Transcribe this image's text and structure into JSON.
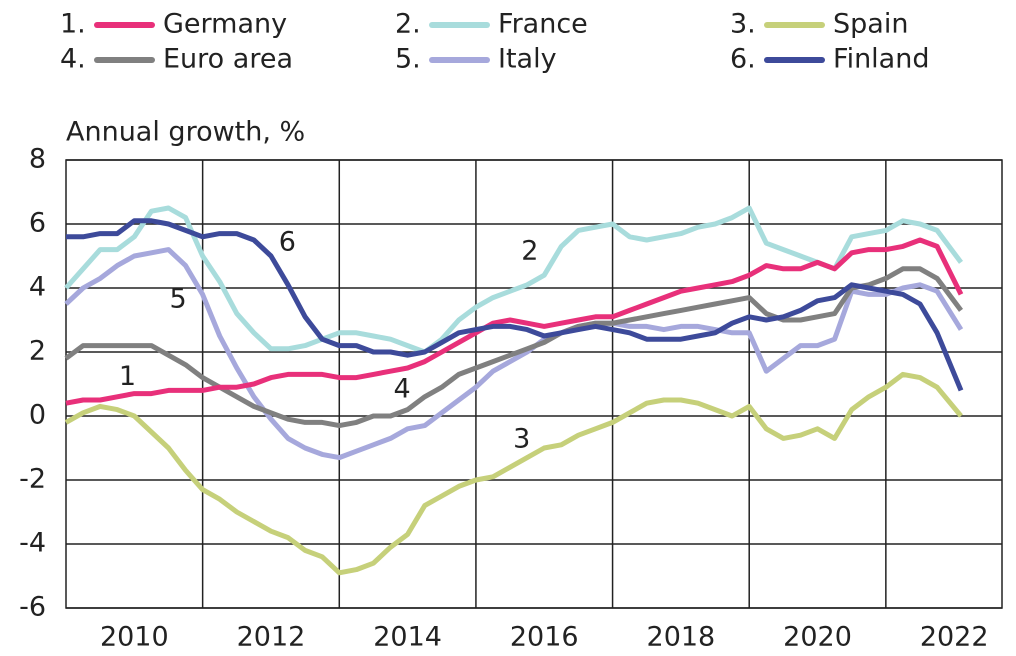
{
  "chart_data": {
    "type": "line",
    "y_label": "Annual growth, %",
    "xlim": [
      2009,
      2022.7
    ],
    "ylim": [
      -6,
      8
    ],
    "xticks": [
      2010,
      2012,
      2014,
      2016,
      2018,
      2020,
      2022
    ],
    "xgrid": [
      2011,
      2013,
      2015,
      2017,
      2019,
      2021
    ],
    "yticks": [
      -6,
      -4,
      -2,
      0,
      2,
      4,
      6,
      8
    ],
    "grid": true,
    "x": [
      2009,
      2009.25,
      2009.5,
      2009.75,
      2010,
      2010.25,
      2010.5,
      2010.75,
      2011,
      2011.25,
      2011.5,
      2011.75,
      2012,
      2012.25,
      2012.5,
      2012.75,
      2013,
      2013.25,
      2013.5,
      2013.75,
      2014,
      2014.25,
      2014.5,
      2014.75,
      2015,
      2015.25,
      2015.5,
      2015.75,
      2016,
      2016.25,
      2016.5,
      2016.75,
      2017,
      2017.25,
      2017.5,
      2017.75,
      2018,
      2018.25,
      2018.5,
      2018.75,
      2019,
      2019.25,
      2019.5,
      2019.75,
      2020,
      2020.25,
      2020.5,
      2020.75,
      2021,
      2021.25,
      2021.5,
      2021.75,
      2022.1
    ],
    "series": [
      {
        "key": "1.",
        "name": "Germany",
        "color": "#e8307a",
        "values": [
          0.4,
          0.5,
          0.5,
          0.6,
          0.7,
          0.7,
          0.8,
          0.8,
          0.8,
          0.9,
          0.9,
          1.0,
          1.2,
          1.3,
          1.3,
          1.3,
          1.2,
          1.2,
          1.3,
          1.4,
          1.5,
          1.7,
          2.0,
          2.3,
          2.6,
          2.9,
          3.0,
          2.9,
          2.8,
          2.9,
          3.0,
          3.1,
          3.1,
          3.3,
          3.5,
          3.7,
          3.9,
          4.0,
          4.1,
          4.2,
          4.4,
          4.7,
          4.6,
          4.6,
          4.8,
          4.6,
          5.1,
          5.2,
          5.2,
          5.3,
          5.5,
          5.3,
          3.8
        ]
      },
      {
        "key": "2.",
        "name": "France",
        "color": "#a8dcdc",
        "values": [
          4.0,
          4.6,
          5.2,
          5.2,
          5.6,
          6.4,
          6.5,
          6.2,
          5.0,
          4.2,
          3.2,
          2.6,
          2.1,
          2.1,
          2.2,
          2.4,
          2.6,
          2.6,
          2.5,
          2.4,
          2.2,
          2.0,
          2.4,
          3.0,
          3.4,
          3.7,
          3.9,
          4.1,
          4.4,
          5.3,
          5.8,
          5.9,
          6.0,
          5.6,
          5.5,
          5.6,
          5.7,
          5.9,
          6.0,
          6.2,
          6.5,
          5.4,
          5.2,
          5.0,
          4.8,
          4.6,
          5.6,
          5.7,
          5.8,
          6.1,
          6.0,
          5.8,
          4.8
        ]
      },
      {
        "key": "3.",
        "name": "Spain",
        "color": "#c6d07a",
        "values": [
          -0.2,
          0.1,
          0.3,
          0.2,
          0.0,
          -0.5,
          -1.0,
          -1.7,
          -2.3,
          -2.6,
          -3.0,
          -3.3,
          -3.6,
          -3.8,
          -4.2,
          -4.4,
          -4.9,
          -4.8,
          -4.6,
          -4.1,
          -3.7,
          -2.8,
          -2.5,
          -2.2,
          -2.0,
          -1.9,
          -1.6,
          -1.3,
          -1.0,
          -0.9,
          -0.6,
          -0.4,
          -0.2,
          0.1,
          0.4,
          0.5,
          0.5,
          0.4,
          0.2,
          0.0,
          0.3,
          -0.4,
          -0.7,
          -0.6,
          -0.4,
          -0.7,
          0.2,
          0.6,
          0.9,
          1.3,
          1.2,
          0.9,
          0.0
        ]
      },
      {
        "key": "4.",
        "name": "Euro area",
        "color": "#808080",
        "values": [
          1.8,
          2.2,
          2.2,
          2.2,
          2.2,
          2.2,
          1.9,
          1.6,
          1.2,
          0.9,
          0.6,
          0.3,
          0.1,
          -0.1,
          -0.2,
          -0.2,
          -0.3,
          -0.2,
          0.0,
          0.0,
          0.2,
          0.6,
          0.9,
          1.3,
          1.5,
          1.7,
          1.9,
          2.1,
          2.3,
          2.6,
          2.8,
          2.9,
          2.9,
          3.0,
          3.1,
          3.2,
          3.3,
          3.4,
          3.5,
          3.6,
          3.7,
          3.2,
          3.0,
          3.0,
          3.1,
          3.2,
          4.0,
          4.1,
          4.3,
          4.6,
          4.6,
          4.3,
          3.3
        ]
      },
      {
        "key": "5.",
        "name": "Italy",
        "color": "#a6a8dc",
        "values": [
          3.5,
          4.0,
          4.3,
          4.7,
          5.0,
          5.1,
          5.2,
          4.7,
          3.8,
          2.5,
          1.5,
          0.6,
          -0.1,
          -0.7,
          -1.0,
          -1.2,
          -1.3,
          -1.1,
          -0.9,
          -0.7,
          -0.4,
          -0.3,
          0.1,
          0.5,
          0.9,
          1.4,
          1.7,
          2.0,
          2.4,
          2.6,
          2.8,
          2.9,
          2.9,
          2.8,
          2.8,
          2.7,
          2.8,
          2.8,
          2.7,
          2.6,
          2.6,
          1.4,
          1.8,
          2.2,
          2.2,
          2.4,
          3.9,
          3.8,
          3.8,
          4.0,
          4.1,
          3.9,
          2.7
        ]
      },
      {
        "key": "6.",
        "name": "Finland",
        "color": "#3d4a9a",
        "values": [
          5.6,
          5.6,
          5.7,
          5.7,
          6.1,
          6.1,
          6.0,
          5.8,
          5.6,
          5.7,
          5.7,
          5.5,
          5.0,
          4.1,
          3.1,
          2.4,
          2.2,
          2.2,
          2.0,
          2.0,
          1.9,
          2.0,
          2.3,
          2.6,
          2.7,
          2.8,
          2.8,
          2.7,
          2.5,
          2.6,
          2.7,
          2.8,
          2.7,
          2.6,
          2.4,
          2.4,
          2.4,
          2.5,
          2.6,
          2.9,
          3.1,
          3.0,
          3.1,
          3.3,
          3.6,
          3.7,
          4.1,
          4.0,
          3.9,
          3.8,
          3.5,
          2.6,
          0.8
        ]
      }
    ],
    "annotations": [
      {
        "text": "1",
        "x": 2009.9,
        "y": 1.2
      },
      {
        "text": "2",
        "x": 2015.79,
        "y": 5.13
      },
      {
        "text": "3",
        "x": 2015.67,
        "y": -0.75
      },
      {
        "text": "4",
        "x": 2013.92,
        "y": 0.81
      },
      {
        "text": "5",
        "x": 2010.64,
        "y": 3.63
      },
      {
        "text": "6",
        "x": 2012.24,
        "y": 5.41
      }
    ]
  }
}
